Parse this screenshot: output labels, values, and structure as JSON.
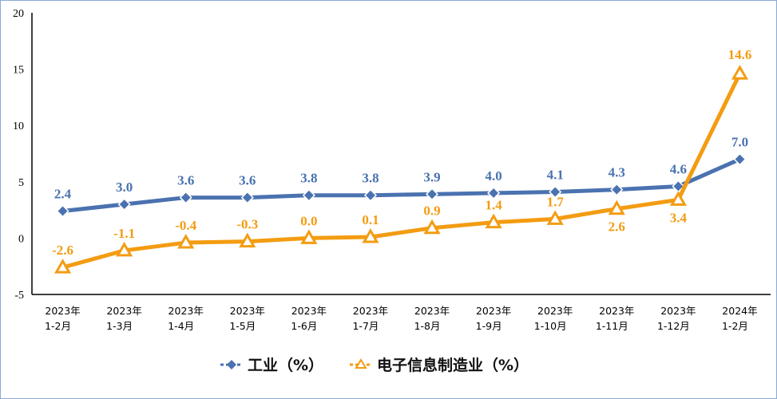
{
  "chart_data": {
    "type": "line",
    "title": "",
    "xlabel": "",
    "ylabel": "",
    "ylim": [
      -5,
      20
    ],
    "yticks": [
      -5,
      0,
      5,
      10,
      15,
      20
    ],
    "grid": false,
    "legend_position": "bottom",
    "categories": [
      [
        "2023年",
        "1-2月"
      ],
      [
        "2023年",
        "1-3月"
      ],
      [
        "2023年",
        "1-4月"
      ],
      [
        "2023年",
        "1-5月"
      ],
      [
        "2023年",
        "1-6月"
      ],
      [
        "2023年",
        "1-7月"
      ],
      [
        "2023年",
        "1-8月"
      ],
      [
        "2023年",
        "1-9月"
      ],
      [
        "2023年",
        "1-10月"
      ],
      [
        "2023年",
        "1-11月"
      ],
      [
        "2023年",
        "1-12月"
      ],
      [
        "2024年",
        "1-2月"
      ]
    ],
    "series": [
      {
        "name": "工业（%）",
        "color": "#4a72b0",
        "marker": "diamond",
        "values": [
          2.4,
          3.0,
          3.6,
          3.6,
          3.8,
          3.8,
          3.9,
          4.0,
          4.1,
          4.3,
          4.6,
          7.0
        ],
        "labels": [
          "2.4",
          "3.0",
          "3.6",
          "3.6",
          "3.8",
          "3.8",
          "3.9",
          "4.0",
          "4.1",
          "4.3",
          "4.6",
          "7.0"
        ]
      },
      {
        "name": "电子信息制造业（%）",
        "color": "#f39c12",
        "marker": "triangle-open",
        "values": [
          -2.6,
          -1.1,
          -0.4,
          -0.3,
          0.0,
          0.1,
          0.9,
          1.4,
          1.7,
          2.6,
          3.4,
          14.6
        ],
        "labels": [
          "-2.6",
          "-1.1",
          "-0.4",
          "-0.3",
          "0.0",
          "0.1",
          "0.9",
          "1.4",
          "1.7",
          "2.6",
          "3.4",
          "14.6"
        ]
      }
    ]
  },
  "legend": {
    "industry": "工业（%）",
    "electronics": "电子信息制造业（%）"
  }
}
